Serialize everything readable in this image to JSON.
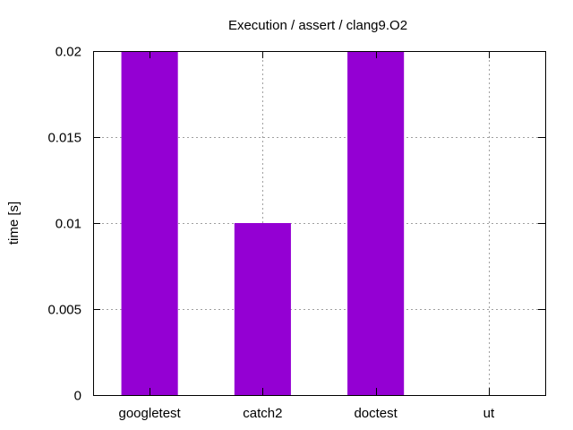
{
  "chart_data": {
    "type": "bar",
    "title": "Execution / assert / clang9.O2",
    "xlabel": "",
    "ylabel": "time [s]",
    "categories": [
      "googletest",
      "catch2",
      "doctest",
      "ut"
    ],
    "values": [
      0.02,
      0.01,
      0.02,
      0
    ],
    "ylim": [
      0,
      0.02
    ],
    "yticks": [
      0,
      0.005,
      0.01,
      0.015,
      0.02
    ],
    "ytick_labels": [
      "0",
      "0.005",
      "0.01",
      "0.015",
      "0.02"
    ],
    "grid": true,
    "bar_color": "#9400d3"
  }
}
